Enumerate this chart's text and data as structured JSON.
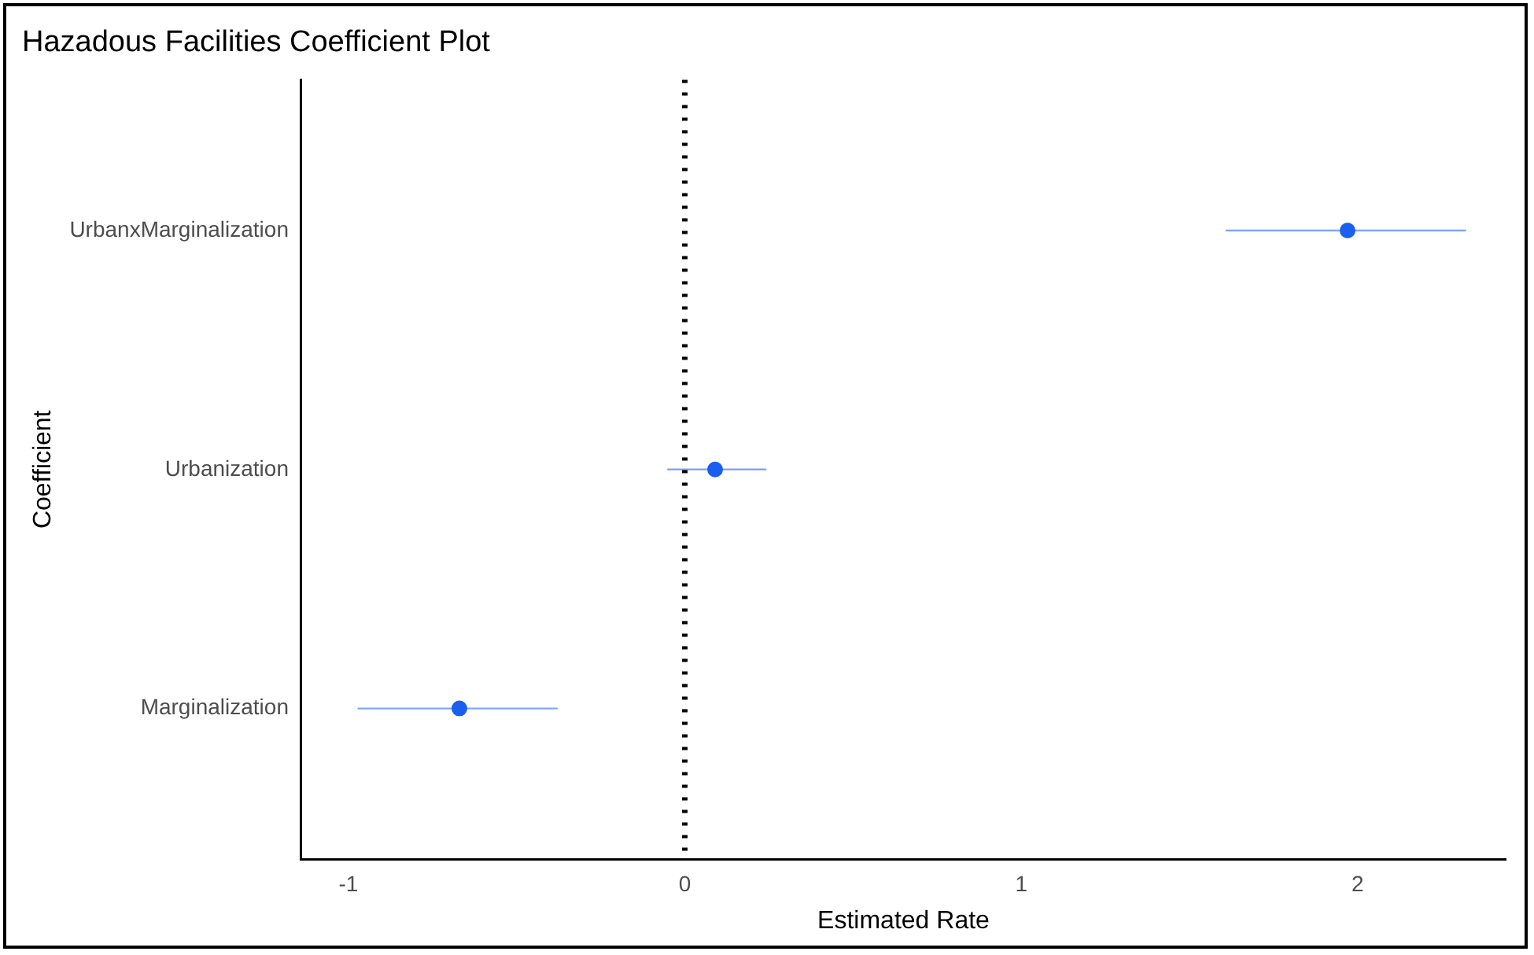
{
  "chart_data": {
    "type": "scatter",
    "title": "Hazadous Facilities Coefficient Plot",
    "xlabel": "Estimated Rate",
    "ylabel": "Coefficient",
    "orientation": "horizontal",
    "categories": [
      "UrbanxMarginalization",
      "Urbanization",
      "Marginalization"
    ],
    "series": [
      {
        "color": "#1a5ff0",
        "values": [
          1.97,
          0.09,
          -0.67
        ],
        "errors": [
          [
            1.61,
            2.32
          ],
          [
            -0.05,
            0.24
          ],
          [
            -0.97,
            -0.38
          ]
        ]
      }
    ],
    "xlim": [
      -1.14,
      2.44
    ],
    "xticks": [
      -1,
      0,
      1,
      2
    ],
    "ref_lines": [
      {
        "axis": "x",
        "value": 0,
        "color": "#000000",
        "line_style": "dotted"
      }
    ],
    "grid": false,
    "legend": false,
    "marker": "circle"
  }
}
